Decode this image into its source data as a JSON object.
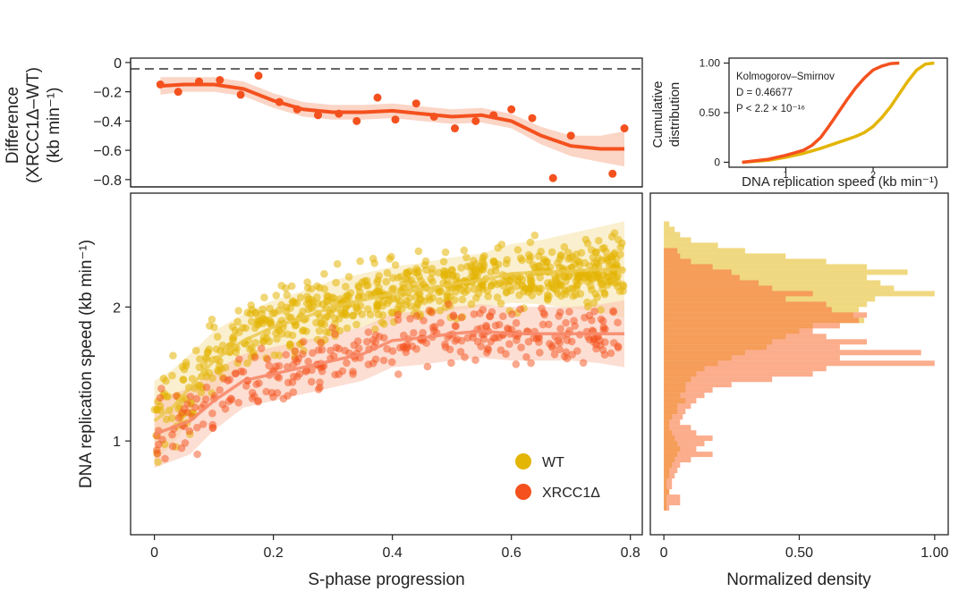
{
  "colors": {
    "wt": "#E3B505",
    "xrcc": "#F4511E",
    "wt_ribbon": "#F3DE94",
    "xrcc_ribbon": "#F9C3AE",
    "difference": "#F4511E"
  },
  "chart_data": [
    {
      "id": "difference",
      "type": "scatter",
      "ylabel": "Difference (XRCC1Δ–WT) (kb min⁻¹)",
      "ylabel_lines": [
        "Difference",
        "(XRCC1Δ–WT)",
        "(kb min⁻¹)"
      ],
      "xlim": [
        -0.04,
        0.82
      ],
      "ylim": [
        -0.85,
        0.03
      ],
      "yticks": [
        0,
        -0.2,
        -0.4,
        -0.6,
        -0.8
      ],
      "ytick_labels": [
        "0",
        "−0.2",
        "−0.4",
        "−0.6",
        "−0.8"
      ],
      "reference_line": 0,
      "points": [
        {
          "x": 0.01,
          "y": -0.15
        },
        {
          "x": 0.04,
          "y": -0.2
        },
        {
          "x": 0.075,
          "y": -0.13
        },
        {
          "x": 0.11,
          "y": -0.12
        },
        {
          "x": 0.145,
          "y": -0.22
        },
        {
          "x": 0.175,
          "y": -0.09
        },
        {
          "x": 0.21,
          "y": -0.27
        },
        {
          "x": 0.24,
          "y": -0.32
        },
        {
          "x": 0.275,
          "y": -0.36
        },
        {
          "x": 0.31,
          "y": -0.35
        },
        {
          "x": 0.34,
          "y": -0.4
        },
        {
          "x": 0.375,
          "y": -0.24
        },
        {
          "x": 0.405,
          "y": -0.39
        },
        {
          "x": 0.44,
          "y": -0.28
        },
        {
          "x": 0.47,
          "y": -0.37
        },
        {
          "x": 0.505,
          "y": -0.45
        },
        {
          "x": 0.54,
          "y": -0.4
        },
        {
          "x": 0.57,
          "y": -0.36
        },
        {
          "x": 0.6,
          "y": -0.32
        },
        {
          "x": 0.635,
          "y": -0.38
        },
        {
          "x": 0.67,
          "y": -0.79
        },
        {
          "x": 0.7,
          "y": -0.5
        },
        {
          "x": 0.77,
          "y": -0.76
        },
        {
          "x": 0.79,
          "y": -0.45
        }
      ],
      "smooth": {
        "x": [
          0.01,
          0.05,
          0.1,
          0.15,
          0.2,
          0.25,
          0.3,
          0.35,
          0.4,
          0.45,
          0.5,
          0.55,
          0.6,
          0.65,
          0.7,
          0.75,
          0.79
        ],
        "y": [
          -0.16,
          -0.15,
          -0.15,
          -0.18,
          -0.26,
          -0.32,
          -0.34,
          -0.34,
          -0.33,
          -0.35,
          -0.37,
          -0.36,
          -0.4,
          -0.5,
          -0.57,
          -0.59,
          -0.59
        ],
        "band": [
          0.06,
          0.05,
          0.05,
          0.05,
          0.05,
          0.05,
          0.05,
          0.05,
          0.05,
          0.05,
          0.05,
          0.05,
          0.05,
          0.06,
          0.07,
          0.09,
          0.12
        ]
      }
    },
    {
      "id": "cumulative",
      "type": "line",
      "ylabel": "Cumulative distribution",
      "ylabel_lines": [
        "Cumulative",
        "distribution"
      ],
      "xlabel": "DNA replication speed (kb min⁻¹)",
      "xlim": [
        0.35,
        2.85
      ],
      "ylim": [
        -0.05,
        1.05
      ],
      "xticks": [
        1,
        2
      ],
      "xtick_labels": [
        "1",
        "2"
      ],
      "yticks": [
        0,
        0.5,
        1.0
      ],
      "ytick_labels": [
        "0",
        "0.50",
        "1.00"
      ],
      "test_name": "Kolmogorov–Smirnov",
      "stat_d": "D = 0.46677",
      "stat_p": "P < 2.2 × 10⁻¹⁶",
      "series": [
        {
          "name": "WT",
          "x": [
            0.5,
            0.8,
            1.0,
            1.2,
            1.4,
            1.6,
            1.8,
            1.9,
            2.0,
            2.1,
            2.2,
            2.3,
            2.4,
            2.5,
            2.6,
            2.7
          ],
          "y": [
            0,
            0.02,
            0.05,
            0.09,
            0.14,
            0.2,
            0.26,
            0.3,
            0.36,
            0.45,
            0.56,
            0.69,
            0.82,
            0.93,
            0.99,
            1.0
          ]
        },
        {
          "name": "XRCC1Δ",
          "x": [
            0.5,
            0.8,
            1.0,
            1.2,
            1.3,
            1.4,
            1.5,
            1.6,
            1.7,
            1.8,
            1.9,
            2.0,
            2.1,
            2.2,
            2.3
          ],
          "y": [
            0,
            0.03,
            0.07,
            0.12,
            0.17,
            0.25,
            0.37,
            0.5,
            0.63,
            0.75,
            0.85,
            0.93,
            0.97,
            0.995,
            1.0
          ]
        }
      ]
    },
    {
      "id": "main-scatter",
      "type": "scatter",
      "xlabel": "S-phase progression",
      "ylabel": "DNA replication speed (kb min⁻¹)",
      "xlim": [
        -0.04,
        0.82
      ],
      "ylim": [
        0.3,
        2.85
      ],
      "xticks": [
        0,
        0.2,
        0.4,
        0.6,
        0.8
      ],
      "xtick_labels": [
        "0",
        "0.2",
        "0.4",
        "0.6",
        "0.8"
      ],
      "yticks": [
        1,
        2
      ],
      "ytick_labels": [
        "1",
        "2"
      ],
      "legend_position": "bottom-right",
      "series": [
        {
          "name": "WT",
          "trend": {
            "x": [
              0.0,
              0.03,
              0.06,
              0.1,
              0.15,
              0.2,
              0.25,
              0.3,
              0.35,
              0.4,
              0.45,
              0.5,
              0.55,
              0.6,
              0.65,
              0.7,
              0.75,
              0.79
            ],
            "y": [
              1.15,
              1.25,
              1.4,
              1.6,
              1.75,
              1.85,
              1.92,
              2.0,
              2.05,
              2.1,
              2.13,
              2.17,
              2.2,
              2.25,
              2.26,
              2.27,
              2.28,
              2.28
            ],
            "band": [
              0.3,
              0.28,
              0.25,
              0.22,
              0.2,
              0.2,
              0.2,
              0.2,
              0.2,
              0.2,
              0.2,
              0.2,
              0.2,
              0.22,
              0.24,
              0.28,
              0.32,
              0.36
            ]
          }
        },
        {
          "name": "XRCC1Δ",
          "trend": {
            "x": [
              0.0,
              0.03,
              0.06,
              0.1,
              0.15,
              0.2,
              0.25,
              0.3,
              0.35,
              0.4,
              0.45,
              0.5,
              0.55,
              0.6,
              0.65,
              0.7,
              0.75,
              0.79
            ],
            "y": [
              1.05,
              1.1,
              1.15,
              1.3,
              1.45,
              1.5,
              1.55,
              1.6,
              1.65,
              1.75,
              1.77,
              1.8,
              1.82,
              1.8,
              1.8,
              1.8,
              1.8,
              1.8
            ],
            "band": [
              0.25,
              0.25,
              0.25,
              0.22,
              0.2,
              0.2,
              0.2,
              0.2,
              0.2,
              0.2,
              0.2,
              0.2,
              0.2,
              0.2,
              0.2,
              0.2,
              0.22,
              0.25
            ]
          }
        }
      ]
    },
    {
      "id": "density",
      "type": "bar",
      "orientation": "horizontal",
      "xlabel": "Normalized density",
      "xlim": [
        -0.05,
        1.05
      ],
      "xticks": [
        0,
        0.5,
        1.0
      ],
      "xtick_labels": [
        "0",
        "0.50",
        "1.00"
      ],
      "bins": [
        2.62,
        2.58,
        2.54,
        2.5,
        2.46,
        2.42,
        2.38,
        2.34,
        2.3,
        2.26,
        2.22,
        2.18,
        2.14,
        2.1,
        2.06,
        2.02,
        1.98,
        1.94,
        1.9,
        1.86,
        1.82,
        1.78,
        1.74,
        1.7,
        1.66,
        1.62,
        1.58,
        1.54,
        1.5,
        1.46,
        1.42,
        1.38,
        1.34,
        1.3,
        1.26,
        1.22,
        1.18,
        1.14,
        1.1,
        1.06,
        1.02,
        0.98,
        0.94,
        0.9,
        0.86,
        0.82,
        0.78,
        0.74,
        0.7,
        0.66,
        0.62,
        0.58,
        0.54,
        0.5
      ],
      "series": [
        {
          "name": "WT",
          "values": [
            0.02,
            0.04,
            0.06,
            0.1,
            0.2,
            0.3,
            0.45,
            0.6,
            0.75,
            0.9,
            0.75,
            0.8,
            0.85,
            1.0,
            0.78,
            0.75,
            0.72,
            0.7,
            0.74,
            0.55,
            0.5,
            0.45,
            0.4,
            0.38,
            0.3,
            0.25,
            0.2,
            0.15,
            0.12,
            0.1,
            0.08,
            0.08,
            0.06,
            0.08,
            0.05,
            0.05,
            0.03,
            0.02,
            0.02,
            0.03,
            0.04,
            0.05,
            0.06,
            0.05,
            0.04,
            0.03,
            0.02,
            0.02,
            0.01,
            0.01,
            0.02,
            0.01,
            0.01,
            0.01
          ]
        },
        {
          "name": "XRCC1Δ",
          "values": [
            0,
            0,
            0,
            0,
            0,
            0.05,
            0.06,
            0.1,
            0.18,
            0.25,
            0.28,
            0.35,
            0.4,
            0.55,
            0.45,
            0.6,
            0.62,
            0.75,
            0.72,
            0.65,
            0.55,
            0.6,
            0.75,
            0.65,
            0.95,
            0.65,
            1.0,
            0.6,
            0.55,
            0.4,
            0.25,
            0.18,
            0.15,
            0.12,
            0.1,
            0.08,
            0.07,
            0.06,
            0.1,
            0.12,
            0.18,
            0.15,
            0.12,
            0.18,
            0.1,
            0.06,
            0.05,
            0.04,
            0.03,
            0.03,
            0.02,
            0.06,
            0.06,
            0.02
          ]
        }
      ]
    }
  ]
}
